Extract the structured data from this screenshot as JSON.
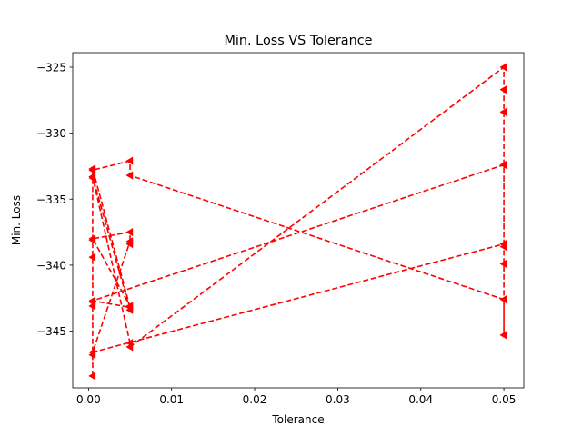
{
  "chart_data": {
    "type": "line",
    "title": "Min. Loss VS Tolerance",
    "xlabel": "Tolerance",
    "ylabel": "Min. Loss",
    "xlim": [
      -0.0019,
      0.0524
    ],
    "ylim": [
      -349.3,
      -323.9
    ],
    "xticks": [
      0.0,
      0.01,
      0.02,
      0.03,
      0.04,
      0.05
    ],
    "xtick_labels": [
      "0.00",
      "0.01",
      "0.02",
      "0.03",
      "0.04",
      "0.05"
    ],
    "yticks": [
      -345,
      -340,
      -335,
      -330,
      -325
    ],
    "ytick_labels": [
      "−345",
      "−340",
      "−335",
      "−330",
      "−325"
    ],
    "grid": false,
    "legend": "none",
    "series": [
      {
        "color": "#ff0000",
        "linestyle": "dashed",
        "marker": "triangle-left",
        "points": [
          [
            0.0005,
            -348.4
          ],
          [
            0.0005,
            -346.8
          ],
          [
            0.0005,
            -343.1
          ],
          [
            0.0005,
            -342.8
          ],
          [
            0.0005,
            -339.4
          ],
          [
            0.0005,
            -338.1
          ],
          [
            0.0005,
            -333.4
          ],
          [
            0.0005,
            -332.8
          ],
          [
            0.005,
            -332.1
          ],
          [
            0.005,
            -333.2
          ],
          [
            0.05,
            -342.6
          ],
          [
            0.05,
            -345.3
          ],
          [
            0.05,
            -339.9
          ],
          [
            0.05,
            -338.4
          ],
          [
            0.05,
            -338.6
          ],
          [
            0.05,
            -332.4
          ],
          [
            0.05,
            -328.4
          ],
          [
            0.05,
            -326.7
          ],
          [
            0.05,
            -325.0
          ],
          [
            0.005,
            -346.2
          ],
          [
            0.005,
            -345.9
          ],
          [
            0.0005,
            -333.3
          ],
          [
            0.005,
            -343.4
          ],
          [
            0.005,
            -343.1
          ],
          [
            0.0005,
            -338.0
          ],
          [
            0.005,
            -337.5
          ],
          [
            0.005,
            -338.4
          ],
          [
            0.005,
            -338.2
          ],
          [
            0.0005,
            -346.6
          ],
          [
            0.05,
            -338.4
          ],
          [
            0.05,
            -332.4
          ],
          [
            0.0005,
            -342.7
          ],
          [
            0.005,
            -343.2
          ],
          [
            0.0005,
            -332.7
          ]
        ]
      }
    ]
  }
}
